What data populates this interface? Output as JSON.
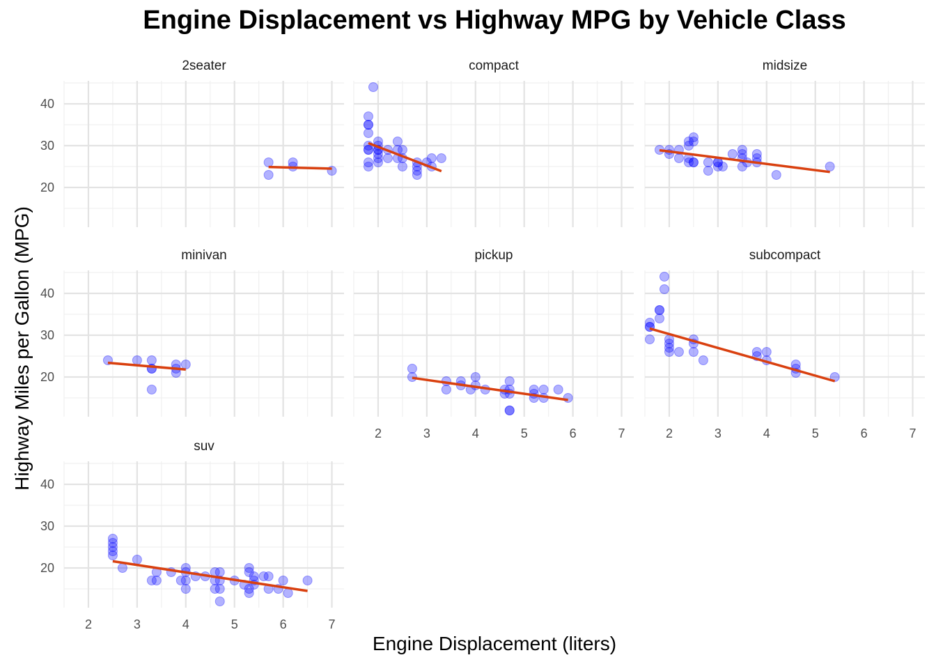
{
  "chart_data": {
    "type": "scatter",
    "title": "Engine Displacement vs Highway MPG by Vehicle Class",
    "xlabel": "Engine Displacement (liters)",
    "ylabel": "Highway Miles per Gallon (MPG)",
    "xlim": [
      1.5,
      7.25
    ],
    "ylim": [
      10.5,
      45.5
    ],
    "x_ticks": [
      2,
      3,
      4,
      5,
      6,
      7
    ],
    "y_ticks": [
      20,
      30,
      40
    ],
    "grid": true,
    "legend": "none",
    "point_color": "#0000ff",
    "trend_color": "#d9400f",
    "facets": [
      {
        "name": "2seater",
        "points": [
          [
            5.7,
            26
          ],
          [
            5.7,
            23
          ],
          [
            6.2,
            26
          ],
          [
            6.2,
            25
          ],
          [
            7.0,
            24
          ]
        ],
        "trend": [
          [
            5.7,
            24.9
          ],
          [
            7.0,
            24.5
          ]
        ]
      },
      {
        "name": "compact",
        "points": [
          [
            1.8,
            29
          ],
          [
            1.8,
            29
          ],
          [
            1.8,
            35
          ],
          [
            1.8,
            37
          ],
          [
            1.8,
            33
          ],
          [
            1.8,
            26
          ],
          [
            1.8,
            25
          ],
          [
            1.8,
            30
          ],
          [
            1.8,
            35
          ],
          [
            1.9,
            44
          ],
          [
            2.0,
            29
          ],
          [
            2.0,
            31
          ],
          [
            2.0,
            28
          ],
          [
            2.0,
            26
          ],
          [
            2.0,
            27
          ],
          [
            2.0,
            29
          ],
          [
            2.0,
            30
          ],
          [
            2.2,
            27
          ],
          [
            2.2,
            29
          ],
          [
            2.4,
            31
          ],
          [
            2.4,
            29
          ],
          [
            2.4,
            27
          ],
          [
            2.5,
            25
          ],
          [
            2.5,
            27
          ],
          [
            2.5,
            29
          ],
          [
            2.8,
            26
          ],
          [
            2.8,
            25
          ],
          [
            2.8,
            24
          ],
          [
            2.8,
            23
          ],
          [
            3.0,
            26
          ],
          [
            3.1,
            27
          ],
          [
            3.1,
            25
          ],
          [
            3.3,
            27
          ]
        ],
        "trend": [
          [
            1.8,
            30.6
          ],
          [
            3.3,
            23.9
          ]
        ]
      },
      {
        "name": "midsize",
        "points": [
          [
            1.8,
            29
          ],
          [
            2.0,
            29
          ],
          [
            2.0,
            28
          ],
          [
            2.2,
            27
          ],
          [
            2.2,
            29
          ],
          [
            2.4,
            31
          ],
          [
            2.4,
            30
          ],
          [
            2.4,
            27
          ],
          [
            2.4,
            26
          ],
          [
            2.5,
            26
          ],
          [
            2.5,
            31
          ],
          [
            2.5,
            32
          ],
          [
            2.5,
            26
          ],
          [
            2.8,
            24
          ],
          [
            2.8,
            26
          ],
          [
            3.0,
            26
          ],
          [
            3.1,
            25
          ],
          [
            3.3,
            28
          ],
          [
            3.5,
            25
          ],
          [
            3.5,
            29
          ],
          [
            3.5,
            28
          ],
          [
            3.5,
            27
          ],
          [
            3.6,
            26
          ],
          [
            3.8,
            28
          ],
          [
            3.8,
            26
          ],
          [
            3.8,
            27
          ],
          [
            4.2,
            23
          ],
          [
            5.3,
            25
          ],
          [
            3.0,
            25
          ],
          [
            3.0,
            26
          ]
        ],
        "trend": [
          [
            1.8,
            28.9
          ],
          [
            5.3,
            23.7
          ]
        ]
      },
      {
        "name": "minivan",
        "points": [
          [
            2.4,
            24
          ],
          [
            3.0,
            24
          ],
          [
            3.3,
            24
          ],
          [
            3.3,
            22
          ],
          [
            3.3,
            17
          ],
          [
            3.3,
            22
          ],
          [
            3.8,
            23
          ],
          [
            3.8,
            22
          ],
          [
            3.8,
            21
          ],
          [
            4.0,
            23
          ]
        ],
        "trend": [
          [
            2.4,
            23.4
          ],
          [
            4.0,
            21.8
          ]
        ]
      },
      {
        "name": "pickup",
        "points": [
          [
            2.7,
            22
          ],
          [
            2.7,
            20
          ],
          [
            3.4,
            19
          ],
          [
            3.4,
            17
          ],
          [
            3.7,
            18
          ],
          [
            3.7,
            19
          ],
          [
            3.9,
            17
          ],
          [
            4.0,
            20
          ],
          [
            4.0,
            18
          ],
          [
            4.2,
            17
          ],
          [
            4.6,
            17
          ],
          [
            4.6,
            16
          ],
          [
            4.7,
            19
          ],
          [
            4.7,
            17
          ],
          [
            4.7,
            16
          ],
          [
            4.7,
            12
          ],
          [
            4.7,
            12
          ],
          [
            5.2,
            17
          ],
          [
            5.2,
            15
          ],
          [
            5.2,
            16
          ],
          [
            5.4,
            17
          ],
          [
            5.4,
            15
          ],
          [
            5.7,
            17
          ],
          [
            5.9,
            15
          ]
        ],
        "trend": [
          [
            2.7,
            19.8
          ],
          [
            5.9,
            14.5
          ]
        ]
      },
      {
        "name": "subcompact",
        "points": [
          [
            1.6,
            33
          ],
          [
            1.6,
            32
          ],
          [
            1.6,
            32
          ],
          [
            1.6,
            29
          ],
          [
            1.8,
            36
          ],
          [
            1.8,
            36
          ],
          [
            1.8,
            34
          ],
          [
            1.9,
            44
          ],
          [
            1.9,
            41
          ],
          [
            2.0,
            29
          ],
          [
            2.0,
            28
          ],
          [
            2.0,
            27
          ],
          [
            2.0,
            26
          ],
          [
            2.2,
            26
          ],
          [
            2.5,
            29
          ],
          [
            2.5,
            28
          ],
          [
            2.5,
            26
          ],
          [
            2.7,
            24
          ],
          [
            3.8,
            26
          ],
          [
            3.8,
            25
          ],
          [
            4.0,
            26
          ],
          [
            4.0,
            24
          ],
          [
            4.6,
            23
          ],
          [
            4.6,
            22
          ],
          [
            4.6,
            21
          ],
          [
            5.4,
            20
          ]
        ],
        "trend": [
          [
            1.6,
            31.6
          ],
          [
            5.4,
            19.0
          ]
        ]
      },
      {
        "name": "suv",
        "points": [
          [
            2.5,
            27
          ],
          [
            2.5,
            26
          ],
          [
            2.5,
            25
          ],
          [
            2.5,
            24
          ],
          [
            2.5,
            23
          ],
          [
            2.7,
            20
          ],
          [
            3.0,
            22
          ],
          [
            3.3,
            17
          ],
          [
            3.4,
            19
          ],
          [
            3.4,
            17
          ],
          [
            3.7,
            19
          ],
          [
            3.9,
            17
          ],
          [
            4.0,
            20
          ],
          [
            4.0,
            19
          ],
          [
            4.0,
            17
          ],
          [
            4.0,
            15
          ],
          [
            4.2,
            18
          ],
          [
            4.4,
            18
          ],
          [
            4.6,
            19
          ],
          [
            4.6,
            17
          ],
          [
            4.6,
            15
          ],
          [
            4.7,
            19
          ],
          [
            4.7,
            17
          ],
          [
            4.7,
            15
          ],
          [
            4.7,
            12
          ],
          [
            5.0,
            17
          ],
          [
            5.2,
            16
          ],
          [
            5.3,
            20
          ],
          [
            5.3,
            19
          ],
          [
            5.3,
            15
          ],
          [
            5.3,
            14
          ],
          [
            5.4,
            18
          ],
          [
            5.4,
            17
          ],
          [
            5.4,
            16
          ],
          [
            5.6,
            18
          ],
          [
            5.7,
            18
          ],
          [
            5.7,
            15
          ],
          [
            5.9,
            15
          ],
          [
            6.0,
            17
          ],
          [
            6.1,
            14
          ],
          [
            6.5,
            17
          ]
        ],
        "trend": [
          [
            2.5,
            21.6
          ],
          [
            6.5,
            14.5
          ]
        ]
      }
    ]
  }
}
